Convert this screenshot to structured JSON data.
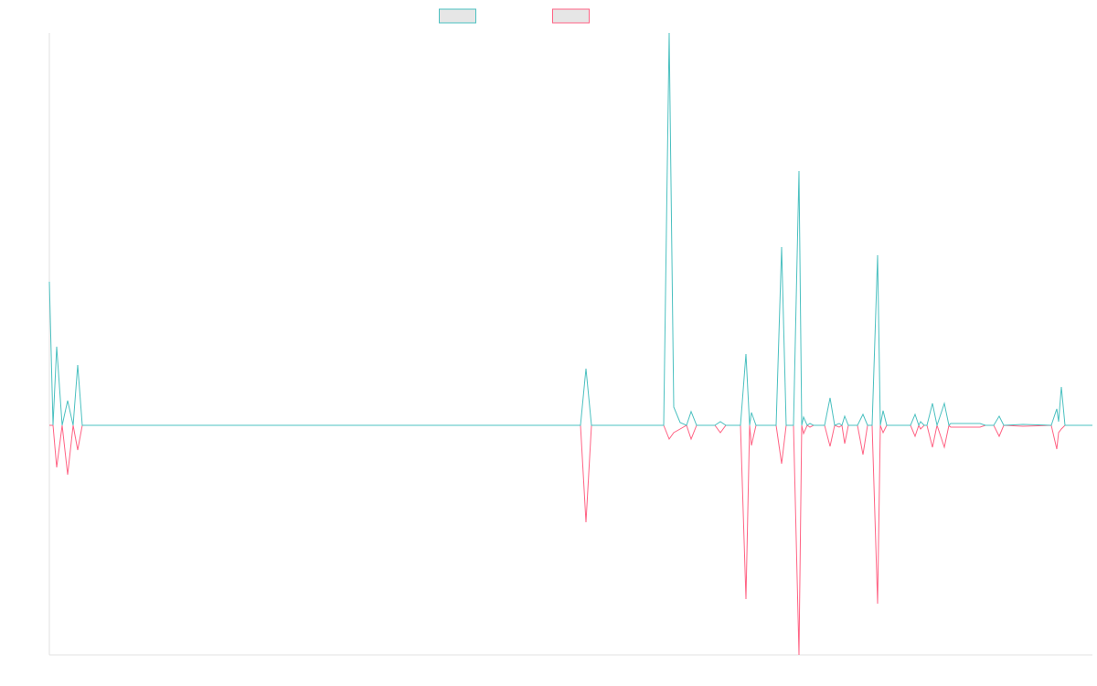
{
  "chart_data": {
    "type": "line",
    "x": [
      0,
      4,
      8,
      14,
      20,
      26,
      31,
      36,
      581,
      587,
      593,
      672,
      678,
      683,
      690,
      697,
      702,
      708,
      728,
      734,
      740,
      756,
      762,
      766,
      768,
      773,
      795,
      801,
      806,
      814,
      820,
      823,
      825,
      829,
      832,
      836,
      848,
      854,
      859,
      864,
      867,
      870,
      874,
      884,
      890,
      895,
      900,
      906,
      909,
      912,
      916,
      942,
      947,
      951,
      953,
      957,
      960,
      966,
      971,
      979,
      984,
      986,
      998,
      1010,
      1018,
      1024,
      1033,
      1039,
      1044,
      1065,
      1096,
      1102,
      1104,
      1107,
      1111,
      1141
    ],
    "series": [
      {
        "color": "#ff6384",
        "legend_fill": "#e6e6e6",
        "values": [
          0,
          0,
          -46,
          0,
          -54,
          0,
          -27,
          0,
          0,
          -106,
          0,
          0,
          -15,
          -8,
          -4,
          0,
          -15,
          0,
          0,
          -8,
          0,
          0,
          -190,
          0,
          -22,
          0,
          0,
          -42,
          0,
          0,
          -251,
          0,
          -9,
          0,
          -2,
          0,
          0,
          -23,
          0,
          -2,
          0,
          -20,
          0,
          0,
          -32,
          0,
          0,
          -195,
          0,
          -8,
          0,
          0,
          -12,
          0,
          -4,
          0,
          0,
          -24,
          0,
          -24,
          0,
          -2,
          -2,
          -2,
          -2,
          0,
          0,
          -12,
          0,
          -1,
          0,
          -26,
          -8,
          -4,
          0,
          0
        ]
      },
      {
        "color": "#4bc0c0",
        "legend_fill": "#e6e6e6",
        "values": [
          157,
          0,
          86,
          0,
          27,
          0,
          66,
          0,
          0,
          62,
          0,
          0,
          429,
          20,
          3,
          0,
          15,
          0,
          0,
          4,
          0,
          0,
          78,
          0,
          14,
          0,
          0,
          195,
          0,
          0,
          278,
          0,
          9,
          0,
          2,
          0,
          0,
          30,
          0,
          2,
          0,
          10,
          0,
          0,
          12,
          0,
          0,
          186,
          0,
          16,
          0,
          0,
          12,
          0,
          4,
          0,
          0,
          24,
          0,
          24,
          0,
          2,
          2,
          2,
          2,
          0,
          0,
          10,
          0,
          1,
          0,
          18,
          4,
          42,
          0,
          0
        ]
      }
    ],
    "xlim": [
      0,
      1141
    ],
    "ylim": [
      -251,
      429
    ],
    "legend": "top",
    "grid": false
  }
}
